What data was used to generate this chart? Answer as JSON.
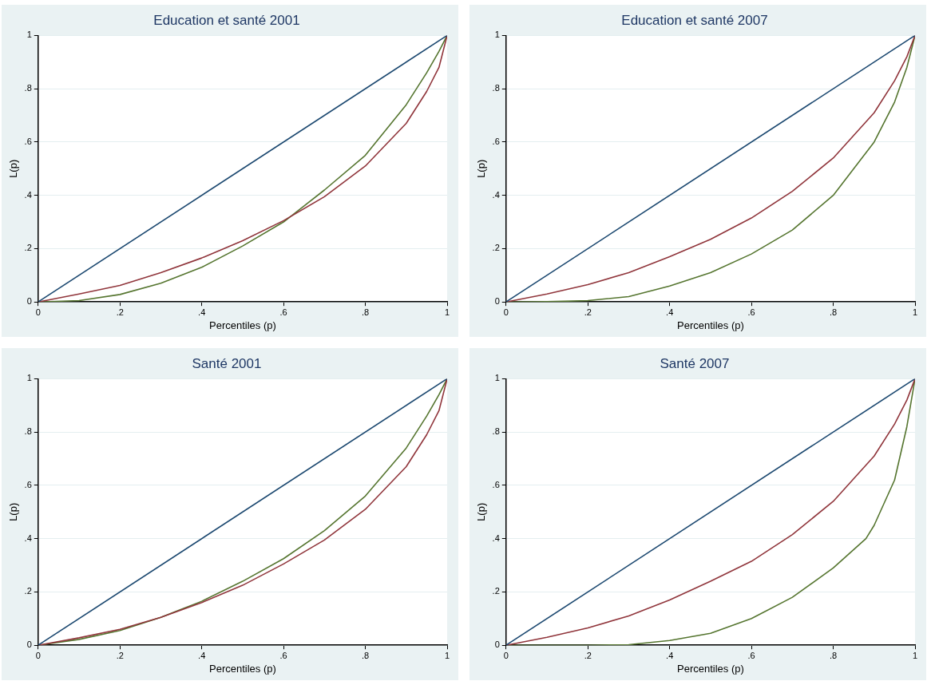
{
  "chart_data": [
    {
      "type": "line",
      "title": "Education et santé 2001",
      "xlabel": "Percentiles (p)",
      "ylabel": "L(p)",
      "xlim": [
        0,
        1
      ],
      "ylim": [
        0,
        1
      ],
      "xticks": [
        {
          "value": 0,
          "label": "0"
        },
        {
          "value": 0.2,
          "label": ".2"
        },
        {
          "value": 0.4,
          "label": ".4"
        },
        {
          "value": 0.6,
          "label": ".6"
        },
        {
          "value": 0.8,
          "label": ".8"
        },
        {
          "value": 1,
          "label": "1"
        }
      ],
      "yticks": [
        {
          "value": 0,
          "label": "0"
        },
        {
          "value": 0.2,
          "label": ".2"
        },
        {
          "value": 0.4,
          "label": ".4"
        },
        {
          "value": 0.6,
          "label": ".6"
        },
        {
          "value": 0.8,
          "label": ".8"
        },
        {
          "value": 1,
          "label": "1"
        }
      ],
      "grid": "y",
      "series": [
        {
          "color": "#1a476f",
          "x": [
            0,
            1
          ],
          "values": [
            0,
            1
          ]
        },
        {
          "color": "#90353b",
          "x": [
            0,
            0.1,
            0.2,
            0.3,
            0.4,
            0.5,
            0.6,
            0.7,
            0.8,
            0.9,
            0.95,
            0.98,
            1
          ],
          "values": [
            0,
            0.03,
            0.062,
            0.11,
            0.165,
            0.23,
            0.305,
            0.395,
            0.51,
            0.67,
            0.79,
            0.88,
            1
          ]
        },
        {
          "color": "#55752f",
          "x": [
            0,
            0.1,
            0.2,
            0.3,
            0.4,
            0.5,
            0.6,
            0.7,
            0.8,
            0.9,
            0.95,
            0.98,
            1
          ],
          "values": [
            0,
            0.005,
            0.028,
            0.07,
            0.13,
            0.21,
            0.3,
            0.42,
            0.55,
            0.74,
            0.86,
            0.94,
            1
          ]
        }
      ]
    },
    {
      "type": "line",
      "title": "Education et santé 2007",
      "xlabel": "Percentiles (p)",
      "ylabel": "L(p)",
      "xlim": [
        0,
        1
      ],
      "ylim": [
        0,
        1
      ],
      "xticks": [
        {
          "value": 0,
          "label": "0"
        },
        {
          "value": 0.2,
          "label": ".2"
        },
        {
          "value": 0.4,
          "label": ".4"
        },
        {
          "value": 0.6,
          "label": ".6"
        },
        {
          "value": 0.8,
          "label": ".8"
        },
        {
          "value": 1,
          "label": "1"
        }
      ],
      "yticks": [
        {
          "value": 0,
          "label": "0"
        },
        {
          "value": 0.2,
          "label": ".2"
        },
        {
          "value": 0.4,
          "label": ".4"
        },
        {
          "value": 0.6,
          "label": ".6"
        },
        {
          "value": 0.8,
          "label": ".8"
        },
        {
          "value": 1,
          "label": "1"
        }
      ],
      "grid": "y",
      "series": [
        {
          "color": "#1a476f",
          "x": [
            0,
            1
          ],
          "values": [
            0,
            1
          ]
        },
        {
          "color": "#90353b",
          "x": [
            0,
            0.1,
            0.2,
            0.3,
            0.4,
            0.5,
            0.6,
            0.7,
            0.8,
            0.9,
            0.95,
            0.98,
            1
          ],
          "values": [
            0,
            0.03,
            0.065,
            0.11,
            0.17,
            0.235,
            0.315,
            0.415,
            0.54,
            0.71,
            0.83,
            0.92,
            1
          ]
        },
        {
          "color": "#55752f",
          "x": [
            0,
            0.1,
            0.2,
            0.3,
            0.4,
            0.5,
            0.6,
            0.7,
            0.8,
            0.9,
            0.95,
            0.98,
            1
          ],
          "values": [
            0,
            0.001,
            0.005,
            0.02,
            0.06,
            0.11,
            0.18,
            0.27,
            0.4,
            0.6,
            0.75,
            0.88,
            1
          ]
        }
      ]
    },
    {
      "type": "line",
      "title": "Santé 2001",
      "xlabel": "Percentiles (p)",
      "ylabel": "L(p)",
      "xlim": [
        0,
        1
      ],
      "ylim": [
        0,
        1
      ],
      "xticks": [
        {
          "value": 0,
          "label": "0"
        },
        {
          "value": 0.2,
          "label": ".2"
        },
        {
          "value": 0.4,
          "label": ".4"
        },
        {
          "value": 0.6,
          "label": ".6"
        },
        {
          "value": 0.8,
          "label": ".8"
        },
        {
          "value": 1,
          "label": "1"
        }
      ],
      "yticks": [
        {
          "value": 0,
          "label": "0"
        },
        {
          "value": 0.2,
          "label": ".2"
        },
        {
          "value": 0.4,
          "label": ".4"
        },
        {
          "value": 0.6,
          "label": ".6"
        },
        {
          "value": 0.8,
          "label": ".8"
        },
        {
          "value": 1,
          "label": "1"
        }
      ],
      "grid": "y",
      "series": [
        {
          "color": "#1a476f",
          "x": [
            0,
            1
          ],
          "values": [
            0,
            1
          ]
        },
        {
          "color": "#90353b",
          "x": [
            0,
            0.1,
            0.2,
            0.3,
            0.4,
            0.5,
            0.6,
            0.7,
            0.8,
            0.9,
            0.95,
            0.98,
            1
          ],
          "values": [
            0,
            0.028,
            0.06,
            0.105,
            0.16,
            0.225,
            0.305,
            0.395,
            0.51,
            0.67,
            0.79,
            0.88,
            1
          ]
        },
        {
          "color": "#55752f",
          "x": [
            0,
            0.1,
            0.2,
            0.3,
            0.4,
            0.5,
            0.6,
            0.7,
            0.8,
            0.9,
            0.95,
            0.98,
            1
          ],
          "values": [
            0,
            0.022,
            0.055,
            0.105,
            0.165,
            0.24,
            0.325,
            0.43,
            0.56,
            0.74,
            0.86,
            0.94,
            1
          ]
        }
      ]
    },
    {
      "type": "line",
      "title": "Santé 2007",
      "xlabel": "Percentiles (p)",
      "ylabel": "L(p)",
      "xlim": [
        0,
        1
      ],
      "ylim": [
        0,
        1
      ],
      "xticks": [
        {
          "value": 0,
          "label": "0"
        },
        {
          "value": 0.2,
          "label": ".2"
        },
        {
          "value": 0.4,
          "label": ".4"
        },
        {
          "value": 0.6,
          "label": ".6"
        },
        {
          "value": 0.8,
          "label": ".8"
        },
        {
          "value": 1,
          "label": "1"
        }
      ],
      "yticks": [
        {
          "value": 0,
          "label": "0"
        },
        {
          "value": 0.2,
          "label": ".2"
        },
        {
          "value": 0.4,
          "label": ".4"
        },
        {
          "value": 0.6,
          "label": ".6"
        },
        {
          "value": 0.8,
          "label": ".8"
        },
        {
          "value": 1,
          "label": "1"
        }
      ],
      "grid": "y",
      "series": [
        {
          "color": "#1a476f",
          "x": [
            0,
            1
          ],
          "values": [
            0,
            1
          ]
        },
        {
          "color": "#90353b",
          "x": [
            0,
            0.1,
            0.2,
            0.3,
            0.4,
            0.5,
            0.6,
            0.7,
            0.8,
            0.9,
            0.95,
            0.98,
            1
          ],
          "values": [
            0,
            0.03,
            0.065,
            0.11,
            0.17,
            0.24,
            0.315,
            0.415,
            0.54,
            0.71,
            0.83,
            0.92,
            1
          ]
        },
        {
          "color": "#55752f",
          "x": [
            0,
            0.2,
            0.3,
            0.4,
            0.5,
            0.6,
            0.7,
            0.8,
            0.88,
            0.9,
            0.95,
            0.98,
            1
          ],
          "values": [
            0,
            0,
            0.002,
            0.018,
            0.045,
            0.1,
            0.18,
            0.29,
            0.4,
            0.45,
            0.62,
            0.82,
            1
          ]
        }
      ]
    }
  ]
}
